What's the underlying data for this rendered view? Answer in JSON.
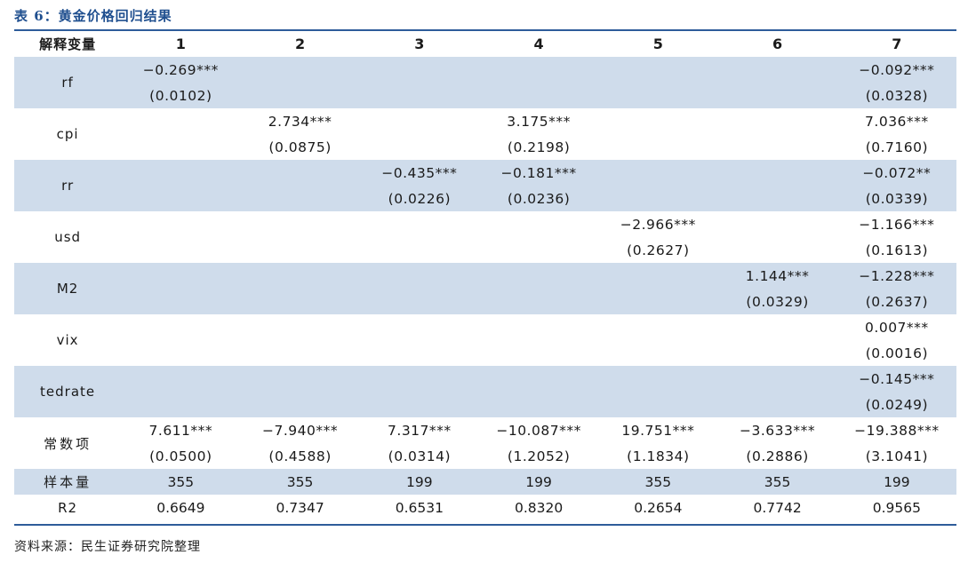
{
  "table": {
    "title": "表 6：黄金价格回归结果",
    "header": {
      "label": "解释变量",
      "columns": [
        "1",
        "2",
        "3",
        "4",
        "5",
        "6",
        "7"
      ]
    },
    "rows": [
      {
        "name": "rf",
        "coef": [
          "−0.269***",
          "",
          "",
          "",
          "",
          "",
          "−0.092***"
        ],
        "se": [
          "(0.0102)",
          "",
          "",
          "",
          "",
          "",
          "(0.0328)"
        ]
      },
      {
        "name": "cpi",
        "coef": [
          "",
          "2.734***",
          "",
          "3.175***",
          "",
          "",
          "7.036***"
        ],
        "se": [
          "",
          "(0.0875)",
          "",
          "(0.2198)",
          "",
          "",
          "(0.7160)"
        ]
      },
      {
        "name": "rr",
        "coef": [
          "",
          "",
          "−0.435***",
          "−0.181***",
          "",
          "",
          "−0.072**"
        ],
        "se": [
          "",
          "",
          "(0.0226)",
          "(0.0236)",
          "",
          "",
          "(0.0339)"
        ]
      },
      {
        "name": "usd",
        "coef": [
          "",
          "",
          "",
          "",
          "−2.966***",
          "",
          "−1.166***"
        ],
        "se": [
          "",
          "",
          "",
          "",
          "(0.2627)",
          "",
          "(0.1613)"
        ]
      },
      {
        "name": "M2",
        "coef": [
          "",
          "",
          "",
          "",
          "",
          "1.144***",
          "−1.228***"
        ],
        "se": [
          "",
          "",
          "",
          "",
          "",
          "(0.0329)",
          "(0.2637)"
        ]
      },
      {
        "name": "vix",
        "coef": [
          "",
          "",
          "",
          "",
          "",
          "",
          "0.007***"
        ],
        "se": [
          "",
          "",
          "",
          "",
          "",
          "",
          "(0.0016)"
        ]
      },
      {
        "name": "tedrate",
        "coef": [
          "",
          "",
          "",
          "",
          "",
          "",
          "−0.145***"
        ],
        "se": [
          "",
          "",
          "",
          "",
          "",
          "",
          "(0.0249)"
        ]
      },
      {
        "name": "常数项",
        "coef": [
          "7.611***",
          "−7.940***",
          "7.317***",
          "−10.087***",
          "19.751***",
          "−3.633***",
          "−19.388***"
        ],
        "se": [
          "(0.0500)",
          "(0.4588)",
          "(0.0314)",
          "(1.2052)",
          "(1.1834)",
          "(0.2886)",
          "(3.1041)"
        ]
      }
    ],
    "stats": [
      {
        "name": "样本量",
        "values": [
          "355",
          "355",
          "199",
          "199",
          "355",
          "355",
          "199"
        ]
      },
      {
        "name": "R2",
        "values": [
          "0.6649",
          "0.7347",
          "0.6531",
          "0.8320",
          "0.2654",
          "0.7742",
          "0.9565"
        ]
      }
    ],
    "source": "资料来源：民生证券研究院整理"
  }
}
